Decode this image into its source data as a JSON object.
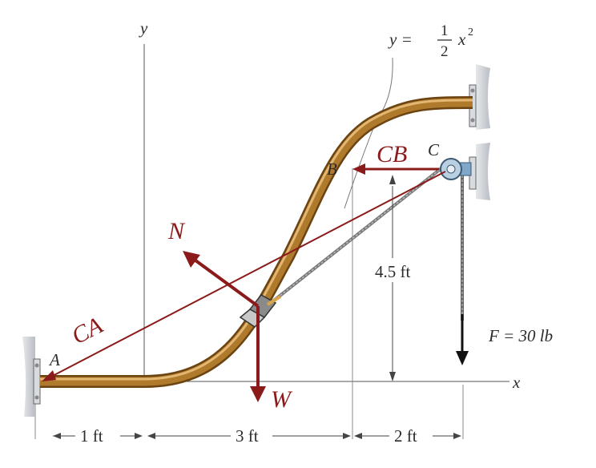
{
  "equation": {
    "lhs": "y =",
    "num": "1",
    "den": "2",
    "var": "x",
    "exp": "2"
  },
  "axes": {
    "x_label": "x",
    "y_label": "y"
  },
  "points": {
    "A": "A",
    "B": "B",
    "C": "C"
  },
  "forces": {
    "CA": "CA",
    "CB": "CB",
    "N": "N",
    "W": "W",
    "F": "F = 30 lb"
  },
  "dimensions": {
    "d1": "1 ft",
    "d2": "3 ft",
    "d3": "2 ft",
    "height": "4.5 ft"
  },
  "colors": {
    "rod": "#b07a2c",
    "rod_edge": "#6b4412",
    "vector": "#8b1a1a",
    "wall": "#cfd3d8"
  }
}
